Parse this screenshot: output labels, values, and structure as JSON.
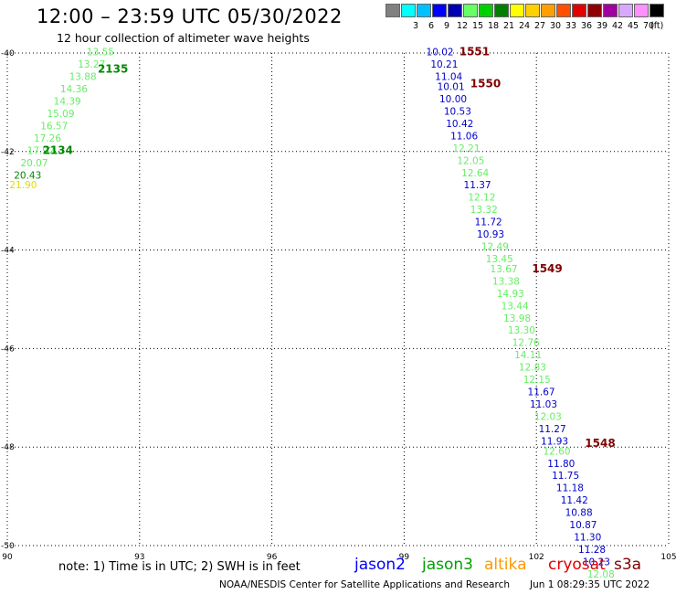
{
  "title": "12:00 – 23:59 UTC 05/30/2022",
  "subtitle": "12 hour collection of altimeter wave heights",
  "color_scale": {
    "unit": "(ft)",
    "items": [
      {
        "label": "",
        "color": "#808080"
      },
      {
        "label": "3",
        "color": "#00ffff"
      },
      {
        "label": "6",
        "color": "#00c0ff"
      },
      {
        "label": "9",
        "color": "#0000ff"
      },
      {
        "label": "12",
        "color": "#0000b0"
      },
      {
        "label": "15",
        "color": "#66ff66"
      },
      {
        "label": "18",
        "color": "#00d000"
      },
      {
        "label": "21",
        "color": "#008000"
      },
      {
        "label": "24",
        "color": "#ffff00"
      },
      {
        "label": "27",
        "color": "#ffd000"
      },
      {
        "label": "30",
        "color": "#ffa000"
      },
      {
        "label": "33",
        "color": "#ff5000"
      },
      {
        "label": "36",
        "color": "#e00000"
      },
      {
        "label": "39",
        "color": "#900000"
      },
      {
        "label": "42",
        "color": "#a000a0"
      },
      {
        "label": "45",
        "color": "#d8a8ff"
      },
      {
        "label": "70",
        "color": "#ff90ff"
      },
      {
        "label": "",
        "color": "#000000"
      }
    ]
  },
  "axes": {
    "x_ticks": [
      "90",
      "93",
      "96",
      "99",
      "102",
      "105"
    ],
    "y_ticks": [
      "-40",
      "-42",
      "-44",
      "-46",
      "-48",
      "-50"
    ]
  },
  "colors": {
    "blue": "#0000cc",
    "light_green": "#66ee66",
    "dark_green": "#008800",
    "yellow": "#dddd00",
    "maroon": "#800000"
  },
  "tracks": [
    {
      "name": "jason3 track",
      "points": [
        {
          "lon": 91.8,
          "lat": -40.05,
          "text": "13.55",
          "color": "light_green"
        },
        {
          "lon": 91.6,
          "lat": -40.3,
          "text": "13.27",
          "color": "light_green"
        },
        {
          "lon": 91.4,
          "lat": -40.55,
          "text": "13.88",
          "color": "light_green"
        },
        {
          "lon": 91.2,
          "lat": -40.8,
          "text": "14.36",
          "color": "light_green"
        },
        {
          "lon": 91.05,
          "lat": -41.05,
          "text": "14.39",
          "color": "light_green"
        },
        {
          "lon": 90.9,
          "lat": -41.3,
          "text": "15.09",
          "color": "light_green"
        },
        {
          "lon": 90.75,
          "lat": -41.55,
          "text": "16.57",
          "color": "light_green"
        },
        {
          "lon": 90.6,
          "lat": -41.8,
          "text": "17.26",
          "color": "light_green"
        },
        {
          "lon": 90.45,
          "lat": -42.05,
          "text": "17.92",
          "color": "light_green"
        },
        {
          "lon": 90.3,
          "lat": -42.3,
          "text": "20.07",
          "color": "light_green"
        },
        {
          "lon": 90.15,
          "lat": -42.55,
          "text": "20.43",
          "color": "dark_green"
        },
        {
          "lon": 90.05,
          "lat": -42.75,
          "text": "21.90",
          "color": "yellow"
        }
      ],
      "times": [
        {
          "lon": 92.05,
          "lat": -40.4,
          "text": "2135",
          "color": "dark_green"
        },
        {
          "lon": 90.8,
          "lat": -42.05,
          "text": "2134",
          "color": "dark_green"
        }
      ]
    },
    {
      "name": "jason2 / s3a track",
      "points": [
        {
          "lon": 99.5,
          "lat": -40.05,
          "text": "10.02",
          "color": "blue"
        },
        {
          "lon": 99.6,
          "lat": -40.3,
          "text": "10.21",
          "color": "blue"
        },
        {
          "lon": 99.7,
          "lat": -40.55,
          "text": "11.04",
          "color": "blue"
        },
        {
          "lon": 99.75,
          "lat": -40.75,
          "text": "10.01",
          "color": "blue"
        },
        {
          "lon": 99.8,
          "lat": -41.0,
          "text": "10.00",
          "color": "blue"
        },
        {
          "lon": 99.9,
          "lat": -41.25,
          "text": "10.53",
          "color": "blue"
        },
        {
          "lon": 99.95,
          "lat": -41.5,
          "text": "10.42",
          "color": "blue"
        },
        {
          "lon": 100.05,
          "lat": -41.75,
          "text": "11.06",
          "color": "blue"
        },
        {
          "lon": 100.1,
          "lat": -42.0,
          "text": "12.21",
          "color": "light_green"
        },
        {
          "lon": 100.2,
          "lat": -42.25,
          "text": "12.05",
          "color": "light_green"
        },
        {
          "lon": 100.3,
          "lat": -42.5,
          "text": "12.64",
          "color": "light_green"
        },
        {
          "lon": 100.35,
          "lat": -42.75,
          "text": "11.37",
          "color": "blue"
        },
        {
          "lon": 100.45,
          "lat": -43.0,
          "text": "12.12",
          "color": "light_green"
        },
        {
          "lon": 100.5,
          "lat": -43.25,
          "text": "13.32",
          "color": "light_green"
        },
        {
          "lon": 100.6,
          "lat": -43.5,
          "text": "11.72",
          "color": "blue"
        },
        {
          "lon": 100.65,
          "lat": -43.75,
          "text": "10.93",
          "color": "blue"
        },
        {
          "lon": 100.75,
          "lat": -44.0,
          "text": "12.49",
          "color": "light_green"
        },
        {
          "lon": 100.85,
          "lat": -44.25,
          "text": "13.45",
          "color": "light_green"
        },
        {
          "lon": 100.95,
          "lat": -44.45,
          "text": "13.67",
          "color": "light_green"
        },
        {
          "lon": 101.0,
          "lat": -44.7,
          "text": "13.38",
          "color": "light_green"
        },
        {
          "lon": 101.1,
          "lat": -44.95,
          "text": "14.93",
          "color": "light_green"
        },
        {
          "lon": 101.2,
          "lat": -45.2,
          "text": "13.44",
          "color": "light_green"
        },
        {
          "lon": 101.25,
          "lat": -45.45,
          "text": "13.98",
          "color": "light_green"
        },
        {
          "lon": 101.35,
          "lat": -45.7,
          "text": "13.30",
          "color": "light_green"
        },
        {
          "lon": 101.45,
          "lat": -45.95,
          "text": "12.76",
          "color": "light_green"
        },
        {
          "lon": 101.5,
          "lat": -46.2,
          "text": "14.11",
          "color": "light_green"
        },
        {
          "lon": 101.6,
          "lat": -46.45,
          "text": "12.83",
          "color": "light_green"
        },
        {
          "lon": 101.7,
          "lat": -46.7,
          "text": "12.15",
          "color": "light_green"
        },
        {
          "lon": 101.8,
          "lat": -46.95,
          "text": "11.67",
          "color": "blue"
        },
        {
          "lon": 101.85,
          "lat": -47.2,
          "text": "11.03",
          "color": "blue"
        },
        {
          "lon": 101.95,
          "lat": -47.45,
          "text": "12.03",
          "color": "light_green"
        },
        {
          "lon": 102.05,
          "lat": -47.7,
          "text": "11.27",
          "color": "blue"
        },
        {
          "lon": 102.1,
          "lat": -47.95,
          "text": "11.93",
          "color": "blue"
        },
        {
          "lon": 102.15,
          "lat": -48.15,
          "text": "12.60",
          "color": "light_green"
        },
        {
          "lon": 102.25,
          "lat": -48.4,
          "text": "11.80",
          "color": "blue"
        },
        {
          "lon": 102.35,
          "lat": -48.65,
          "text": "11.75",
          "color": "blue"
        },
        {
          "lon": 102.45,
          "lat": -48.9,
          "text": "11.18",
          "color": "blue"
        },
        {
          "lon": 102.55,
          "lat": -49.15,
          "text": "11.42",
          "color": "blue"
        },
        {
          "lon": 102.65,
          "lat": -49.4,
          "text": "10.88",
          "color": "blue"
        },
        {
          "lon": 102.75,
          "lat": -49.65,
          "text": "10.87",
          "color": "blue"
        },
        {
          "lon": 102.85,
          "lat": -49.9,
          "text": "11.30",
          "color": "blue"
        },
        {
          "lon": 102.95,
          "lat": -50.15,
          "text": "11.28",
          "color": "blue"
        },
        {
          "lon": 103.05,
          "lat": -50.4,
          "text": "10.23",
          "color": "blue"
        },
        {
          "lon": 103.15,
          "lat": -50.65,
          "text": "12.08",
          "color": "light_green"
        }
      ],
      "times": [
        {
          "lon": 100.25,
          "lat": -40.05,
          "text": "1551",
          "color": "maroon"
        },
        {
          "lon": 100.5,
          "lat": -40.7,
          "text": "1550",
          "color": "maroon"
        },
        {
          "lon": 101.9,
          "lat": -44.45,
          "text": "1549",
          "color": "maroon"
        },
        {
          "lon": 103.1,
          "lat": -48.0,
          "text": "1548",
          "color": "maroon"
        }
      ]
    }
  ],
  "note": "note: 1) Time is in UTC; 2) SWH is in feet",
  "satellites": [
    {
      "label": "jason2",
      "color": "#0000ff"
    },
    {
      "label": "jason3",
      "color": "#00a000"
    },
    {
      "label": "altika",
      "color": "#ff9900"
    },
    {
      "label": "cryosat",
      "color": "#e00000"
    },
    {
      "label": "s3a",
      "color": "#800000"
    }
  ],
  "footer": "NOAA/NESDIS Center for Satellite Applications and Research",
  "footer_time": "Jun  1 08:29:35 UTC 2022"
}
